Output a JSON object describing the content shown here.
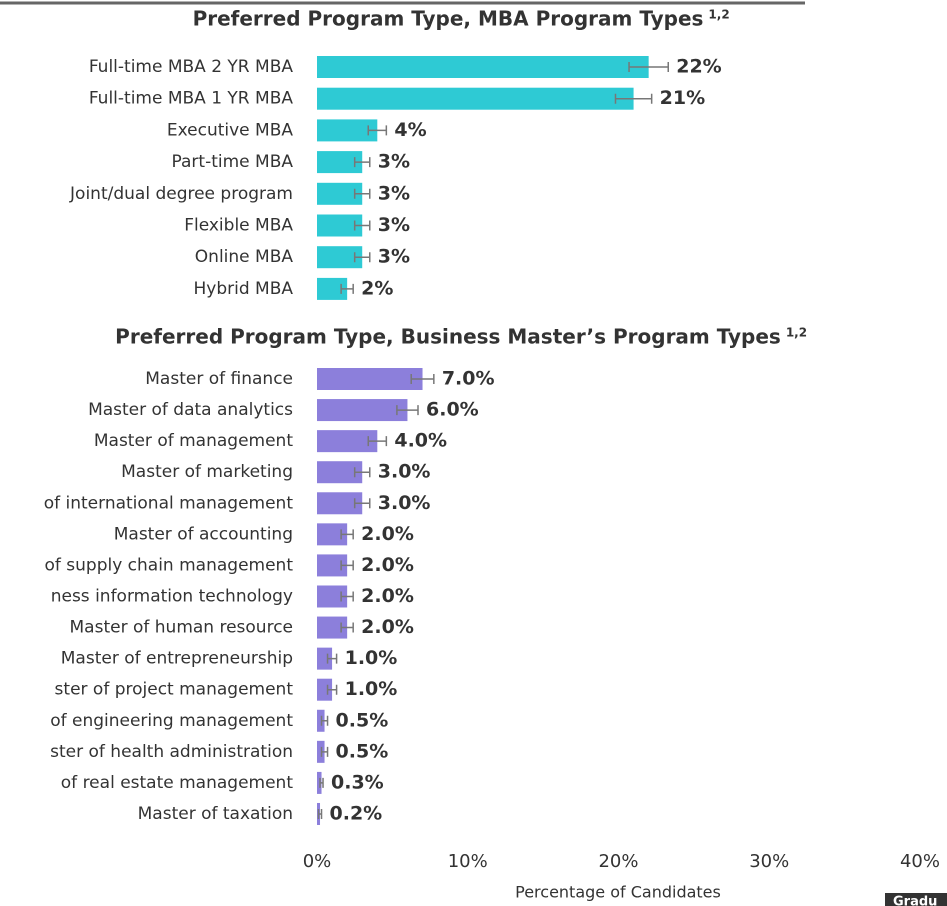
{
  "chart_data": [
    {
      "type": "hbar",
      "title": "Preferred Program Type, MBA Program Types",
      "title_note": "1,2",
      "categories": [
        "Full-time MBA 2 YR MBA",
        "Full-time MBA 1 YR MBA",
        "Executive MBA",
        "Part-time MBA",
        "Joint/dual degree program",
        "Flexible MBA",
        "Online MBA",
        "Hybrid MBA"
      ],
      "values": [
        22,
        21,
        4,
        3,
        3,
        3,
        3,
        2
      ],
      "value_labels": [
        "22%",
        "21%",
        "4%",
        "3%",
        "3%",
        "3%",
        "3%",
        "2%"
      ],
      "errors": [
        1.3,
        1.2,
        0.6,
        0.5,
        0.5,
        0.5,
        0.5,
        0.4
      ],
      "color": "#2ecad4",
      "xlim": [
        0,
        40
      ]
    },
    {
      "type": "hbar",
      "title": "Preferred Program Type, Business Master’s Program Types",
      "title_note": "1,2",
      "categories": [
        "Master of finance",
        "Master of data analytics",
        "Master of management",
        "Master of marketing",
        "of international management",
        "Master of accounting",
        "of supply chain management",
        "ness information technology",
        "Master of human resource",
        "Master of entrepreneurship",
        "ster of project management",
        "of engineering management",
        "ster of health administration",
        "of real estate management",
        "Master of taxation"
      ],
      "values": [
        7.0,
        6.0,
        4.0,
        3.0,
        3.0,
        2.0,
        2.0,
        2.0,
        2.0,
        1.0,
        1.0,
        0.5,
        0.5,
        0.3,
        0.2
      ],
      "value_labels": [
        "7.0%",
        "6.0%",
        "4.0%",
        "3.0%",
        "3.0%",
        "2.0%",
        "2.0%",
        "2.0%",
        "2.0%",
        "1.0%",
        "1.0%",
        "0.5%",
        "0.5%",
        "0.3%",
        "0.2%"
      ],
      "errors": [
        0.75,
        0.7,
        0.6,
        0.5,
        0.5,
        0.4,
        0.4,
        0.4,
        0.4,
        0.3,
        0.3,
        0.2,
        0.2,
        0.1,
        0.1
      ],
      "color": "#8c7fdb",
      "xlim": [
        0,
        40
      ],
      "xticks": [
        {
          "value": 0,
          "label": "0%"
        },
        {
          "value": 10,
          "label": "10%"
        },
        {
          "value": 20,
          "label": "20%"
        },
        {
          "value": 30,
          "label": "30%"
        },
        {
          "value": 40,
          "label": "40%"
        }
      ],
      "xlabel": "Percentage of Candidates"
    }
  ],
  "badge": "Gradu"
}
